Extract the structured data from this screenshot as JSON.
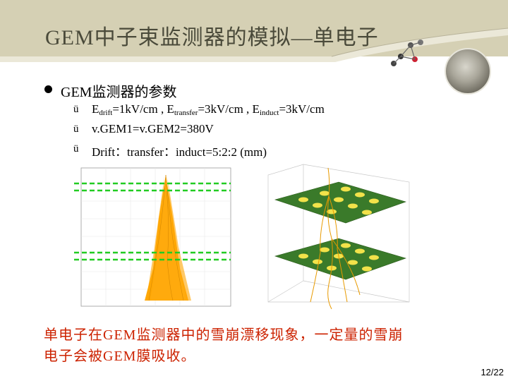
{
  "title": "GEM中子束监测器的模拟—单电子",
  "bullet": {
    "heading": "GEM监测器的参数",
    "items": [
      {
        "check": "ü",
        "parts": [
          "E",
          "drift",
          "=1kV/cm ,  E",
          "transfer",
          "=3kV/cm ,  E",
          "induct",
          "=3kV/cm"
        ]
      },
      {
        "check": "ü",
        "text": "v.GEM1=v.GEM2=380V"
      },
      {
        "check": "ü",
        "text": "Drift：transfer：induct=5:2:2 (mm)"
      }
    ]
  },
  "figures": {
    "left_plot_name": "avalanche-drift-plot",
    "right_plot_name": "gem-3d-plot",
    "line_color": "#ffa500",
    "gem_color": "#3a7a2a",
    "dashed_color": "#22cc22"
  },
  "caption": {
    "line1": "单电子在GEM监测器中的雪崩漂移现象，一定量的雪崩",
    "line2": "电子会被GEM膜吸收。"
  },
  "page_number": "12/22"
}
